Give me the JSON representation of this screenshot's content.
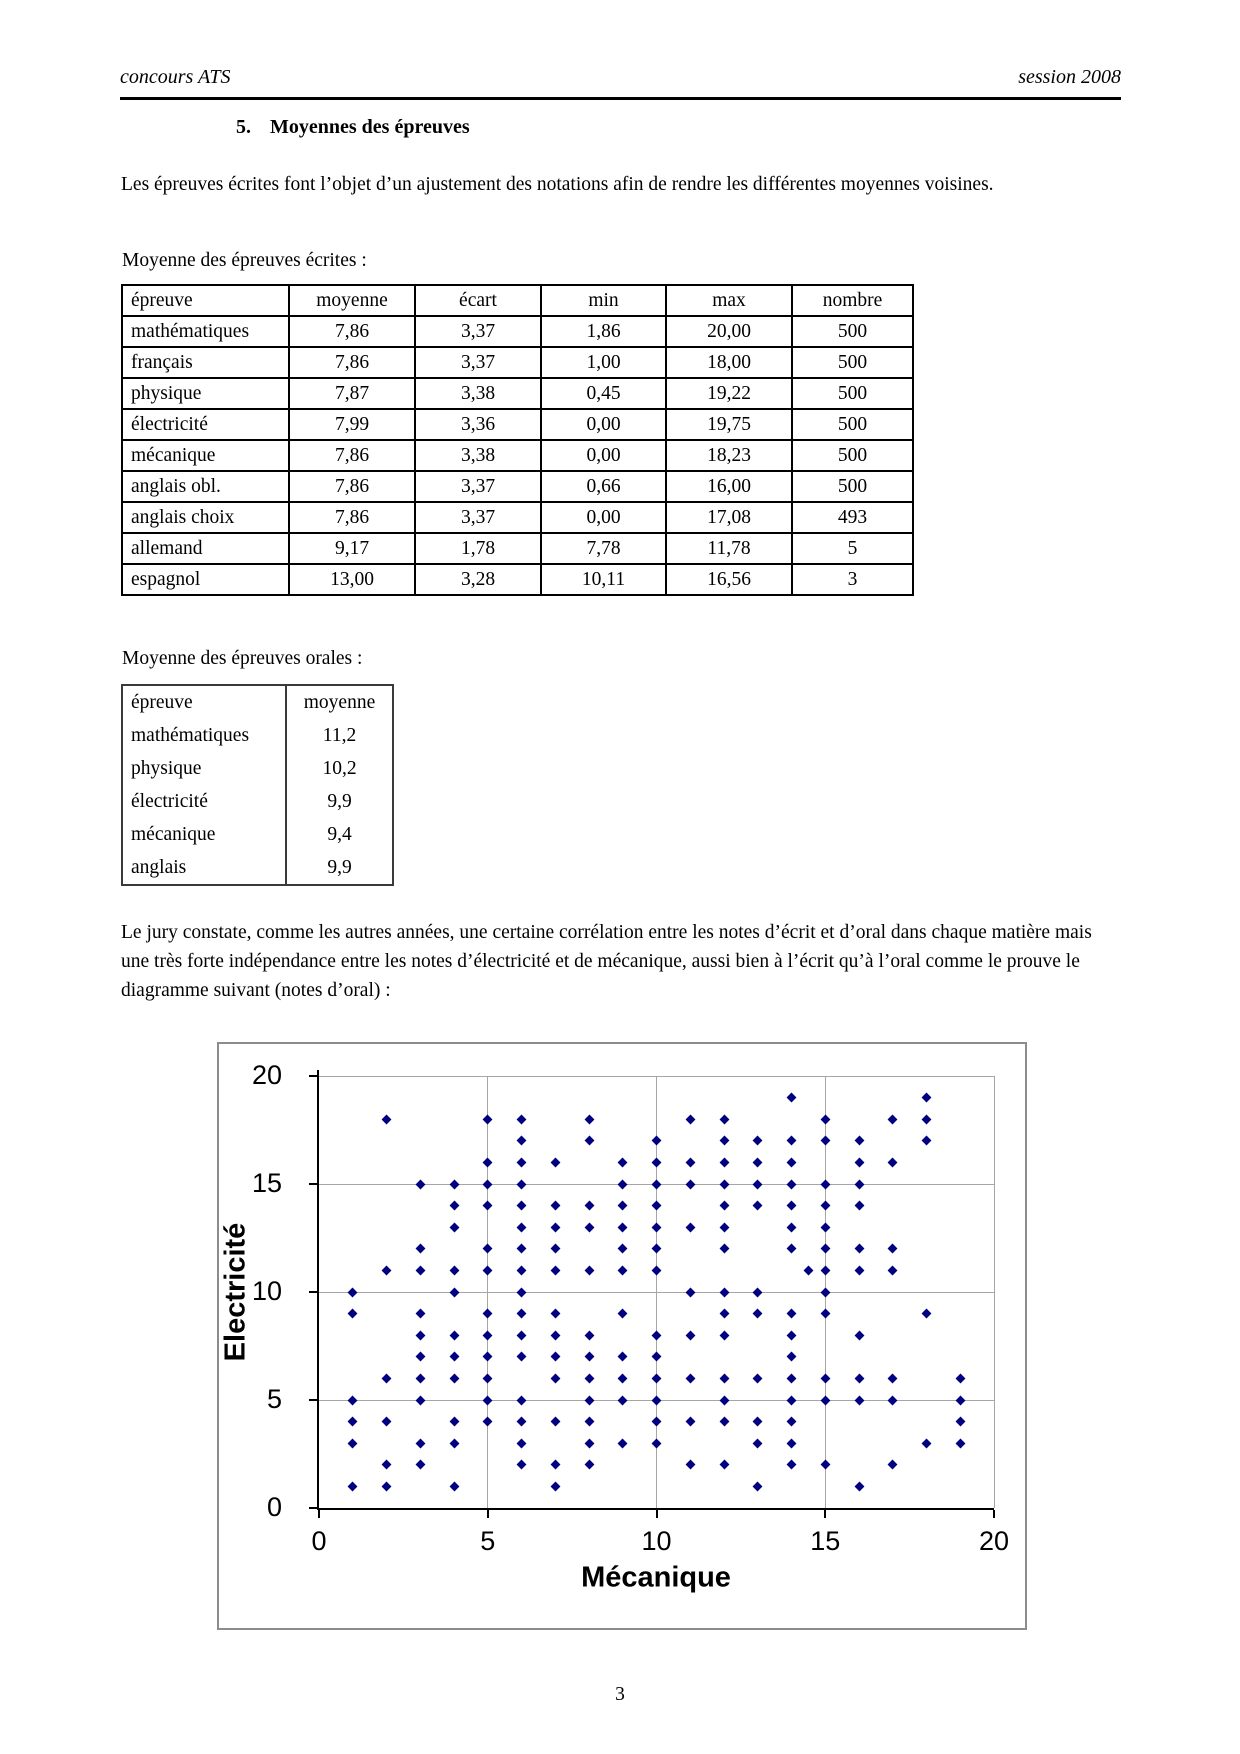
{
  "header": {
    "left": "concours ATS",
    "right": "session 2008"
  },
  "section_heading": {
    "number": "5.",
    "title": "Moyennes des épreuves"
  },
  "paragraph_1": "Les épreuves écrites font l’objet d’un ajustement des notations afin de rendre les différentes moyennes voisines.",
  "written_table": {
    "caption": "Moyenne des épreuves écrites :",
    "headers": [
      "épreuve",
      "moyenne",
      "écart",
      "min",
      "max",
      "nombre"
    ],
    "rows": [
      [
        "mathématiques",
        "7,86",
        "3,37",
        "1,86",
        "20,00",
        "500"
      ],
      [
        "français",
        "7,86",
        "3,37",
        "1,00",
        "18,00",
        "500"
      ],
      [
        "physique",
        "7,87",
        "3,38",
        "0,45",
        "19,22",
        "500"
      ],
      [
        "électricité",
        "7,99",
        "3,36",
        "0,00",
        "19,75",
        "500"
      ],
      [
        "mécanique",
        "7,86",
        "3,38",
        "0,00",
        "18,23",
        "500"
      ],
      [
        "anglais obl.",
        "7,86",
        "3,37",
        "0,66",
        "16,00",
        "500"
      ],
      [
        "anglais choix",
        "7,86",
        "3,37",
        "0,00",
        "17,08",
        "493"
      ],
      [
        "allemand",
        "9,17",
        "1,78",
        "7,78",
        "11,78",
        "5"
      ],
      [
        "espagnol",
        "13,00",
        "3,28",
        "10,11",
        "16,56",
        "3"
      ]
    ]
  },
  "oral_table": {
    "caption": "Moyenne des épreuves orales :",
    "headers": [
      "épreuve",
      "moyenne"
    ],
    "rows": [
      [
        "mathématiques",
        "11,2"
      ],
      [
        "physique",
        "10,2"
      ],
      [
        "électricité",
        "9,9"
      ],
      [
        "mécanique",
        "9,4"
      ],
      [
        "anglais",
        "9,9"
      ]
    ]
  },
  "paragraph_2": "Le jury constate, comme les autres années, une certaine corrélation entre les notes d’écrit et d’oral dans chaque matière mais une très forte indépendance entre les notes d’électricité et de mécanique, aussi bien à l’écrit qu’à l’oral comme le prouve le diagramme suivant (notes d’oral) :",
  "page_number": "3",
  "chart_data": {
    "type": "scatter",
    "title": "",
    "xlabel": "Mécanique",
    "ylabel": "Electricité",
    "xlim": [
      0,
      20
    ],
    "ylim": [
      0,
      20
    ],
    "xticks": [
      0,
      5,
      10,
      15,
      20
    ],
    "yticks": [
      0,
      5,
      10,
      15,
      20
    ],
    "grid": true,
    "legend": false,
    "marker": {
      "shape": "diamond",
      "color": "#000080"
    },
    "points": [
      [
        14,
        19
      ],
      [
        18,
        19
      ],
      [
        2,
        18
      ],
      [
        5,
        18
      ],
      [
        6,
        18
      ],
      [
        8,
        18
      ],
      [
        11,
        18
      ],
      [
        12,
        18
      ],
      [
        15,
        18
      ],
      [
        17,
        18
      ],
      [
        18,
        18
      ],
      [
        6,
        17
      ],
      [
        8,
        17
      ],
      [
        10,
        17
      ],
      [
        12,
        17
      ],
      [
        13,
        17
      ],
      [
        14,
        17
      ],
      [
        15,
        17
      ],
      [
        16,
        17
      ],
      [
        18,
        17
      ],
      [
        5,
        16
      ],
      [
        6,
        16
      ],
      [
        7,
        16
      ],
      [
        9,
        16
      ],
      [
        10,
        16
      ],
      [
        11,
        16
      ],
      [
        12,
        16
      ],
      [
        13,
        16
      ],
      [
        14,
        16
      ],
      [
        16,
        16
      ],
      [
        17,
        16
      ],
      [
        3,
        15
      ],
      [
        4,
        15
      ],
      [
        5,
        15
      ],
      [
        6,
        15
      ],
      [
        9,
        15
      ],
      [
        10,
        15
      ],
      [
        11,
        15
      ],
      [
        12,
        15
      ],
      [
        13,
        15
      ],
      [
        14,
        15
      ],
      [
        15,
        15
      ],
      [
        16,
        15
      ],
      [
        4,
        14
      ],
      [
        5,
        14
      ],
      [
        6,
        14
      ],
      [
        7,
        14
      ],
      [
        8,
        14
      ],
      [
        9,
        14
      ],
      [
        10,
        14
      ],
      [
        12,
        14
      ],
      [
        13,
        14
      ],
      [
        14,
        14
      ],
      [
        15,
        14
      ],
      [
        16,
        14
      ],
      [
        4,
        13
      ],
      [
        6,
        13
      ],
      [
        7,
        13
      ],
      [
        8,
        13
      ],
      [
        9,
        13
      ],
      [
        10,
        13
      ],
      [
        11,
        13
      ],
      [
        12,
        13
      ],
      [
        14,
        13
      ],
      [
        15,
        13
      ],
      [
        3,
        12
      ],
      [
        5,
        12
      ],
      [
        6,
        12
      ],
      [
        7,
        12
      ],
      [
        9,
        12
      ],
      [
        10,
        12
      ],
      [
        12,
        12
      ],
      [
        14,
        12
      ],
      [
        15,
        12
      ],
      [
        16,
        12
      ],
      [
        17,
        12
      ],
      [
        2,
        11
      ],
      [
        3,
        11
      ],
      [
        4,
        11
      ],
      [
        5,
        11
      ],
      [
        6,
        11
      ],
      [
        7,
        11
      ],
      [
        8,
        11
      ],
      [
        9,
        11
      ],
      [
        10,
        11
      ],
      [
        14.5,
        11
      ],
      [
        15,
        11
      ],
      [
        16,
        11
      ],
      [
        17,
        11
      ],
      [
        1,
        10
      ],
      [
        4,
        10
      ],
      [
        6,
        10
      ],
      [
        11,
        10
      ],
      [
        12,
        10
      ],
      [
        13,
        10
      ],
      [
        15,
        10
      ],
      [
        1,
        9
      ],
      [
        3,
        9
      ],
      [
        5,
        9
      ],
      [
        6,
        9
      ],
      [
        7,
        9
      ],
      [
        9,
        9
      ],
      [
        12,
        9
      ],
      [
        13,
        9
      ],
      [
        14,
        9
      ],
      [
        15,
        9
      ],
      [
        18,
        9
      ],
      [
        3,
        8
      ],
      [
        4,
        8
      ],
      [
        5,
        8
      ],
      [
        6,
        8
      ],
      [
        7,
        8
      ],
      [
        8,
        8
      ],
      [
        10,
        8
      ],
      [
        11,
        8
      ],
      [
        12,
        8
      ],
      [
        14,
        8
      ],
      [
        16,
        8
      ],
      [
        3,
        7
      ],
      [
        4,
        7
      ],
      [
        5,
        7
      ],
      [
        6,
        7
      ],
      [
        7,
        7
      ],
      [
        8,
        7
      ],
      [
        9,
        7
      ],
      [
        10,
        7
      ],
      [
        14,
        7
      ],
      [
        2,
        6
      ],
      [
        3,
        6
      ],
      [
        4,
        6
      ],
      [
        5,
        6
      ],
      [
        7,
        6
      ],
      [
        8,
        6
      ],
      [
        9,
        6
      ],
      [
        10,
        6
      ],
      [
        11,
        6
      ],
      [
        12,
        6
      ],
      [
        13,
        6
      ],
      [
        14,
        6
      ],
      [
        15,
        6
      ],
      [
        16,
        6
      ],
      [
        17,
        6
      ],
      [
        19,
        6
      ],
      [
        1,
        5
      ],
      [
        3,
        5
      ],
      [
        5,
        5
      ],
      [
        6,
        5
      ],
      [
        8,
        5
      ],
      [
        9,
        5
      ],
      [
        10,
        5
      ],
      [
        12,
        5
      ],
      [
        14,
        5
      ],
      [
        15,
        5
      ],
      [
        16,
        5
      ],
      [
        17,
        5
      ],
      [
        19,
        5
      ],
      [
        1,
        4
      ],
      [
        2,
        4
      ],
      [
        4,
        4
      ],
      [
        5,
        4
      ],
      [
        6,
        4
      ],
      [
        7,
        4
      ],
      [
        8,
        4
      ],
      [
        10,
        4
      ],
      [
        11,
        4
      ],
      [
        12,
        4
      ],
      [
        13,
        4
      ],
      [
        14,
        4
      ],
      [
        19,
        4
      ],
      [
        1,
        3
      ],
      [
        3,
        3
      ],
      [
        4,
        3
      ],
      [
        6,
        3
      ],
      [
        8,
        3
      ],
      [
        9,
        3
      ],
      [
        10,
        3
      ],
      [
        13,
        3
      ],
      [
        14,
        3
      ],
      [
        18,
        3
      ],
      [
        19,
        3
      ],
      [
        2,
        2
      ],
      [
        3,
        2
      ],
      [
        6,
        2
      ],
      [
        7,
        2
      ],
      [
        8,
        2
      ],
      [
        11,
        2
      ],
      [
        12,
        2
      ],
      [
        14,
        2
      ],
      [
        15,
        2
      ],
      [
        17,
        2
      ],
      [
        1,
        1
      ],
      [
        2,
        1
      ],
      [
        4,
        1
      ],
      [
        7,
        1
      ],
      [
        13,
        1
      ],
      [
        16,
        1
      ]
    ]
  }
}
